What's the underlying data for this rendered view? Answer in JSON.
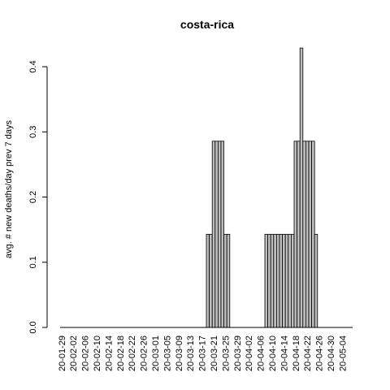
{
  "chart_data": {
    "type": "bar",
    "title": "costa-rica",
    "xlabel": "",
    "ylabel": "avg. # new deaths/day prev  7  days",
    "ylim": [
      0,
      0.43
    ],
    "y_ticks": [
      "0.0",
      "0.1",
      "0.2",
      "0.3",
      "0.4"
    ],
    "x_tick_labels": [
      "20-01-29",
      "20-02-02",
      "20-02-06",
      "20-02-10",
      "20-02-14",
      "20-02-18",
      "20-02-22",
      "20-02-26",
      "20-03-01",
      "20-03-05",
      "20-03-09",
      "20-03-13",
      "20-03-17",
      "20-03-21",
      "20-03-25",
      "20-03-29",
      "20-04-02",
      "20-04-06",
      "20-04-10",
      "20-04-14",
      "20-04-18",
      "20-04-22",
      "20-04-26",
      "20-04-30",
      "20-05-04"
    ],
    "start_date": "2020-01-29",
    "days_per_tick": 4,
    "bar_color": "#bebebe",
    "values": [
      0,
      0,
      0,
      0,
      0,
      0,
      0,
      0,
      0,
      0,
      0,
      0,
      0,
      0,
      0,
      0,
      0,
      0,
      0,
      0,
      0,
      0,
      0,
      0,
      0,
      0,
      0,
      0,
      0,
      0,
      0,
      0,
      0,
      0,
      0,
      0,
      0,
      0,
      0,
      0,
      0,
      0,
      0,
      0,
      0,
      0,
      0,
      0,
      0,
      0,
      0.1429,
      0.1429,
      0.2857,
      0.2857,
      0.2857,
      0.2857,
      0.1429,
      0.1429,
      0,
      0,
      0,
      0,
      0,
      0,
      0,
      0,
      0,
      0,
      0,
      0,
      0.1429,
      0.1429,
      0.1429,
      0.1429,
      0.1429,
      0.1429,
      0.1429,
      0.1429,
      0.1429,
      0.1429,
      0.2857,
      0.2857,
      0.4286,
      0.2857,
      0.2857,
      0.2857,
      0.2857,
      0.1429,
      0,
      0,
      0,
      0,
      0,
      0,
      0,
      0,
      0,
      0,
      0,
      0
    ]
  }
}
